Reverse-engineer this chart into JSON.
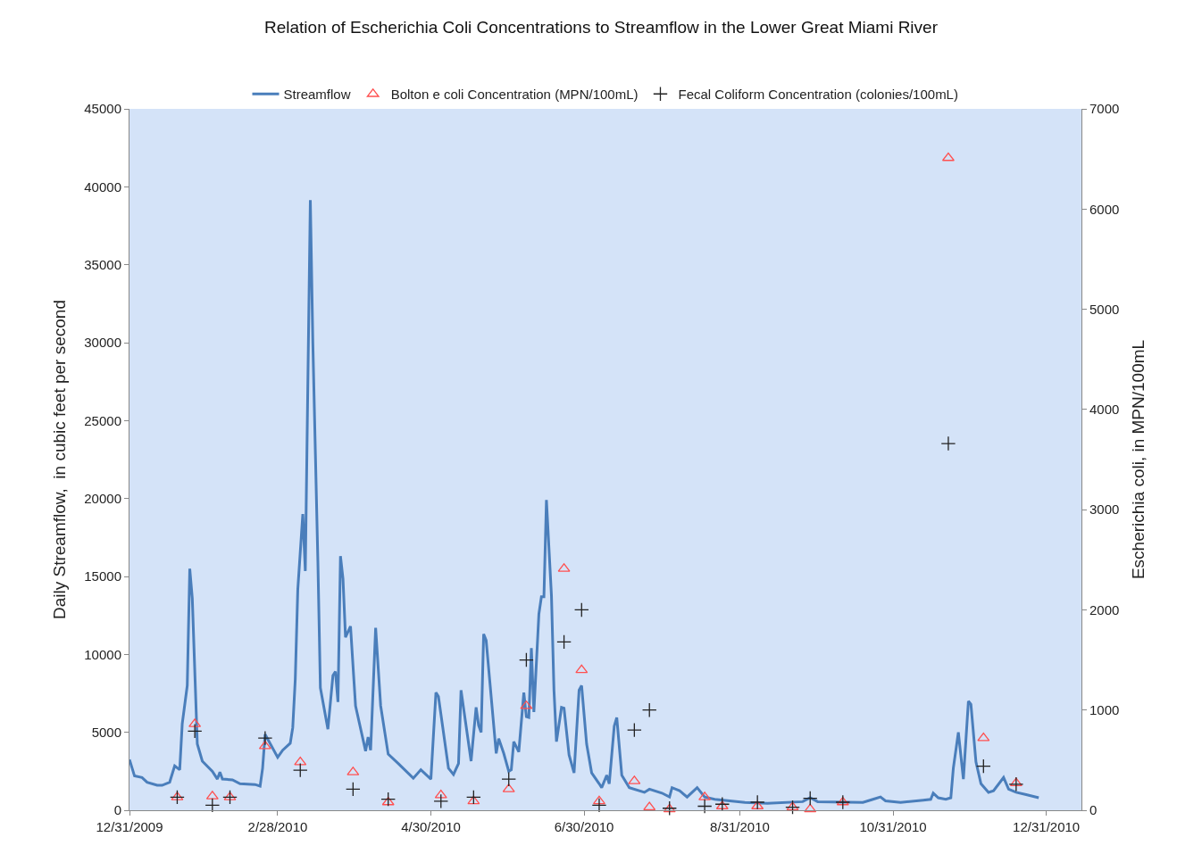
{
  "chart_data": {
    "type": "line",
    "title": "Relation of Escherichia Coli Concentrations to Streamflow in the Lower Great Miami River",
    "ylabel": "Daily Streamflow,  in cubic feet per second",
    "y2label": "Escherichia coli, in MPN/100mL",
    "xlim": [
      "2009-12-31",
      "2011-01-14"
    ],
    "xticks": [
      {
        "value": "2009-12-31",
        "label": "12/31/2009"
      },
      {
        "value": "2010-02-28",
        "label": "2/28/2010"
      },
      {
        "value": "2010-04-30",
        "label": "4/30/2010"
      },
      {
        "value": "2010-06-30",
        "label": "6/30/2010"
      },
      {
        "value": "2010-08-31",
        "label": "8/31/2010"
      },
      {
        "value": "2010-10-31",
        "label": "10/31/2010"
      },
      {
        "value": "2010-12-31",
        "label": "12/31/2010"
      }
    ],
    "ylim": [
      0,
      45000
    ],
    "yticks": [
      0,
      5000,
      10000,
      15000,
      20000,
      25000,
      30000,
      35000,
      40000,
      45000
    ],
    "y2lim": [
      0,
      7000
    ],
    "y2ticks": [
      0,
      1000,
      2000,
      3000,
      4000,
      5000,
      6000,
      7000
    ],
    "grid": false,
    "legend": "top",
    "series": [
      {
        "name": "Streamflow",
        "marker": "none",
        "color": "#4a7ebb",
        "x": [
          "2009-12-31",
          "2010-01-02",
          "2010-01-05",
          "2010-01-07",
          "2010-01-11",
          "2010-01-13",
          "2010-01-16",
          "2010-01-18",
          "2010-01-20",
          "2010-01-21",
          "2010-01-23",
          "2010-01-24",
          "2010-01-25",
          "2010-01-27",
          "2010-01-29",
          "2010-02-02",
          "2010-02-04",
          "2010-02-05",
          "2010-02-06",
          "2010-02-10",
          "2010-02-13",
          "2010-02-19",
          "2010-02-21",
          "2010-02-22",
          "2010-02-23",
          "2010-02-28",
          "2010-03-02",
          "2010-03-05",
          "2010-03-06",
          "2010-03-07",
          "2010-03-08",
          "2010-03-10",
          "2010-03-11",
          "2010-03-13",
          "2010-03-14",
          "2010-03-16",
          "2010-03-17",
          "2010-03-20",
          "2010-03-22",
          "2010-03-23",
          "2010-03-24",
          "2010-03-25",
          "2010-03-26",
          "2010-03-27",
          "2010-03-29",
          "2010-03-31",
          "2010-04-04",
          "2010-04-05",
          "2010-04-06",
          "2010-04-08",
          "2010-04-10",
          "2010-04-13",
          "2010-04-17",
          "2010-04-23",
          "2010-04-26",
          "2010-04-30",
          "2010-05-02",
          "2010-05-03",
          "2010-05-07",
          "2010-05-09",
          "2010-05-11",
          "2010-05-12",
          "2010-05-16",
          "2010-05-18",
          "2010-05-19",
          "2010-05-20",
          "2010-05-21",
          "2010-05-22",
          "2010-05-26",
          "2010-05-27",
          "2010-05-29",
          "2010-05-31",
          "2010-06-01",
          "2010-06-02",
          "2010-06-04",
          "2010-06-06",
          "2010-06-07",
          "2010-06-08",
          "2010-06-09",
          "2010-06-10",
          "2010-06-12",
          "2010-06-13",
          "2010-06-14",
          "2010-06-15",
          "2010-06-17",
          "2010-06-18",
          "2010-06-19",
          "2010-06-21",
          "2010-06-22",
          "2010-06-24",
          "2010-06-26",
          "2010-06-28",
          "2010-06-29",
          "2010-07-01",
          "2010-07-03",
          "2010-07-06",
          "2010-07-07",
          "2010-07-09",
          "2010-07-10",
          "2010-07-12",
          "2010-07-13",
          "2010-07-15",
          "2010-07-18",
          "2010-07-24",
          "2010-07-26",
          "2010-07-31",
          "2010-08-03",
          "2010-08-04",
          "2010-08-07",
          "2010-08-10",
          "2010-08-14",
          "2010-08-17",
          "2010-08-21",
          "2010-08-27",
          "2010-09-02",
          "2010-09-11",
          "2010-09-25",
          "2010-09-28",
          "2010-10-01",
          "2010-10-19",
          "2010-10-23",
          "2010-10-26",
          "2010-10-28",
          "2010-11-03",
          "2010-11-12",
          "2010-11-15",
          "2010-11-16",
          "2010-11-18",
          "2010-11-21",
          "2010-11-23",
          "2010-11-24",
          "2010-11-26",
          "2010-11-28",
          "2010-11-30",
          "2010-12-01",
          "2010-12-03",
          "2010-12-05",
          "2010-12-08",
          "2010-12-10",
          "2010-12-14",
          "2010-12-16",
          "2010-12-19",
          "2010-12-23",
          "2010-12-28"
        ],
        "values": [
          3250,
          2200,
          2100,
          1800,
          1600,
          1600,
          1800,
          2850,
          2600,
          5550,
          8000,
          15500,
          13600,
          4250,
          3150,
          2500,
          2000,
          2450,
          2000,
          1950,
          1700,
          1650,
          1550,
          2700,
          4870,
          3400,
          3850,
          4300,
          5300,
          8400,
          14150,
          19000,
          15350,
          39150,
          30000,
          16000,
          7850,
          5200,
          8650,
          8900,
          6950,
          16300,
          14850,
          11100,
          11800,
          6700,
          3800,
          4700,
          3850,
          11700,
          6700,
          3600,
          3000,
          2050,
          2600,
          2000,
          7550,
          7300,
          2700,
          2300,
          3000,
          7700,
          3150,
          6600,
          5450,
          5000,
          11300,
          10900,
          3650,
          4600,
          3650,
          2500,
          2600,
          4400,
          3750,
          7550,
          6000,
          5950,
          10400,
          6300,
          12600,
          13700,
          13700,
          19900,
          13750,
          7700,
          4400,
          6600,
          6550,
          3550,
          2400,
          7700,
          8000,
          4250,
          2400,
          1700,
          1450,
          2250,
          1700,
          5400,
          5950,
          2250,
          1450,
          1150,
          1350,
          1100,
          850,
          1450,
          1250,
          850,
          1450,
          850,
          700,
          600,
          500,
          450,
          550,
          800,
          550,
          500,
          700,
          850,
          600,
          500,
          650,
          700,
          1100,
          800,
          700,
          800,
          2700,
          5000,
          2000,
          7000,
          6800,
          3100,
          1700,
          1150,
          1250,
          2100,
          1350,
          1150,
          1000,
          800
        ]
      },
      {
        "name": "Bolton e coli Concentration (MPN/100mL)",
        "type": "scatter",
        "marker": "triangle",
        "axis": "y2",
        "color": "#ff5050",
        "x": [
          "2010-01-19",
          "2010-01-26",
          "2010-02-02",
          "2010-02-09",
          "2010-02-23",
          "2010-03-09",
          "2010-03-30",
          "2010-04-13",
          "2010-05-04",
          "2010-05-17",
          "2010-05-31",
          "2010-06-07",
          "2010-06-22",
          "2010-06-29",
          "2010-07-06",
          "2010-07-20",
          "2010-07-26",
          "2010-08-03",
          "2010-08-17",
          "2010-08-24",
          "2010-09-07",
          "2010-09-21",
          "2010-09-28",
          "2010-10-11",
          "2010-11-22",
          "2010-12-06",
          "2010-12-19"
        ],
        "values": [
          130,
          860,
          140,
          130,
          640,
          480,
          380,
          80,
          150,
          90,
          210,
          1040,
          2410,
          1400,
          90,
          290,
          30,
          10,
          130,
          40,
          40,
          30,
          10,
          80,
          6510,
          720,
          270
        ]
      },
      {
        "name": "Fecal Coliform Concentration (colonies/100mL)",
        "type": "scatter",
        "marker": "cross",
        "axis": "y2",
        "color": "#222222",
        "x": [
          "2010-01-19",
          "2010-01-26",
          "2010-02-02",
          "2010-02-09",
          "2010-02-23",
          "2010-03-09",
          "2010-03-30",
          "2010-04-13",
          "2010-05-04",
          "2010-05-17",
          "2010-05-31",
          "2010-06-07",
          "2010-06-22",
          "2010-06-29",
          "2010-07-06",
          "2010-07-20",
          "2010-07-26",
          "2010-08-03",
          "2010-08-17",
          "2010-08-24",
          "2010-09-07",
          "2010-09-21",
          "2010-09-28",
          "2010-10-11",
          "2010-11-22",
          "2010-12-06",
          "2010-12-19"
        ],
        "values": [
          130,
          790,
          50,
          130,
          720,
          400,
          210,
          110,
          90,
          130,
          310,
          1500,
          1680,
          2000,
          50,
          800,
          1000,
          20,
          40,
          60,
          80,
          30,
          120,
          80,
          3660,
          440,
          260
        ]
      }
    ]
  }
}
